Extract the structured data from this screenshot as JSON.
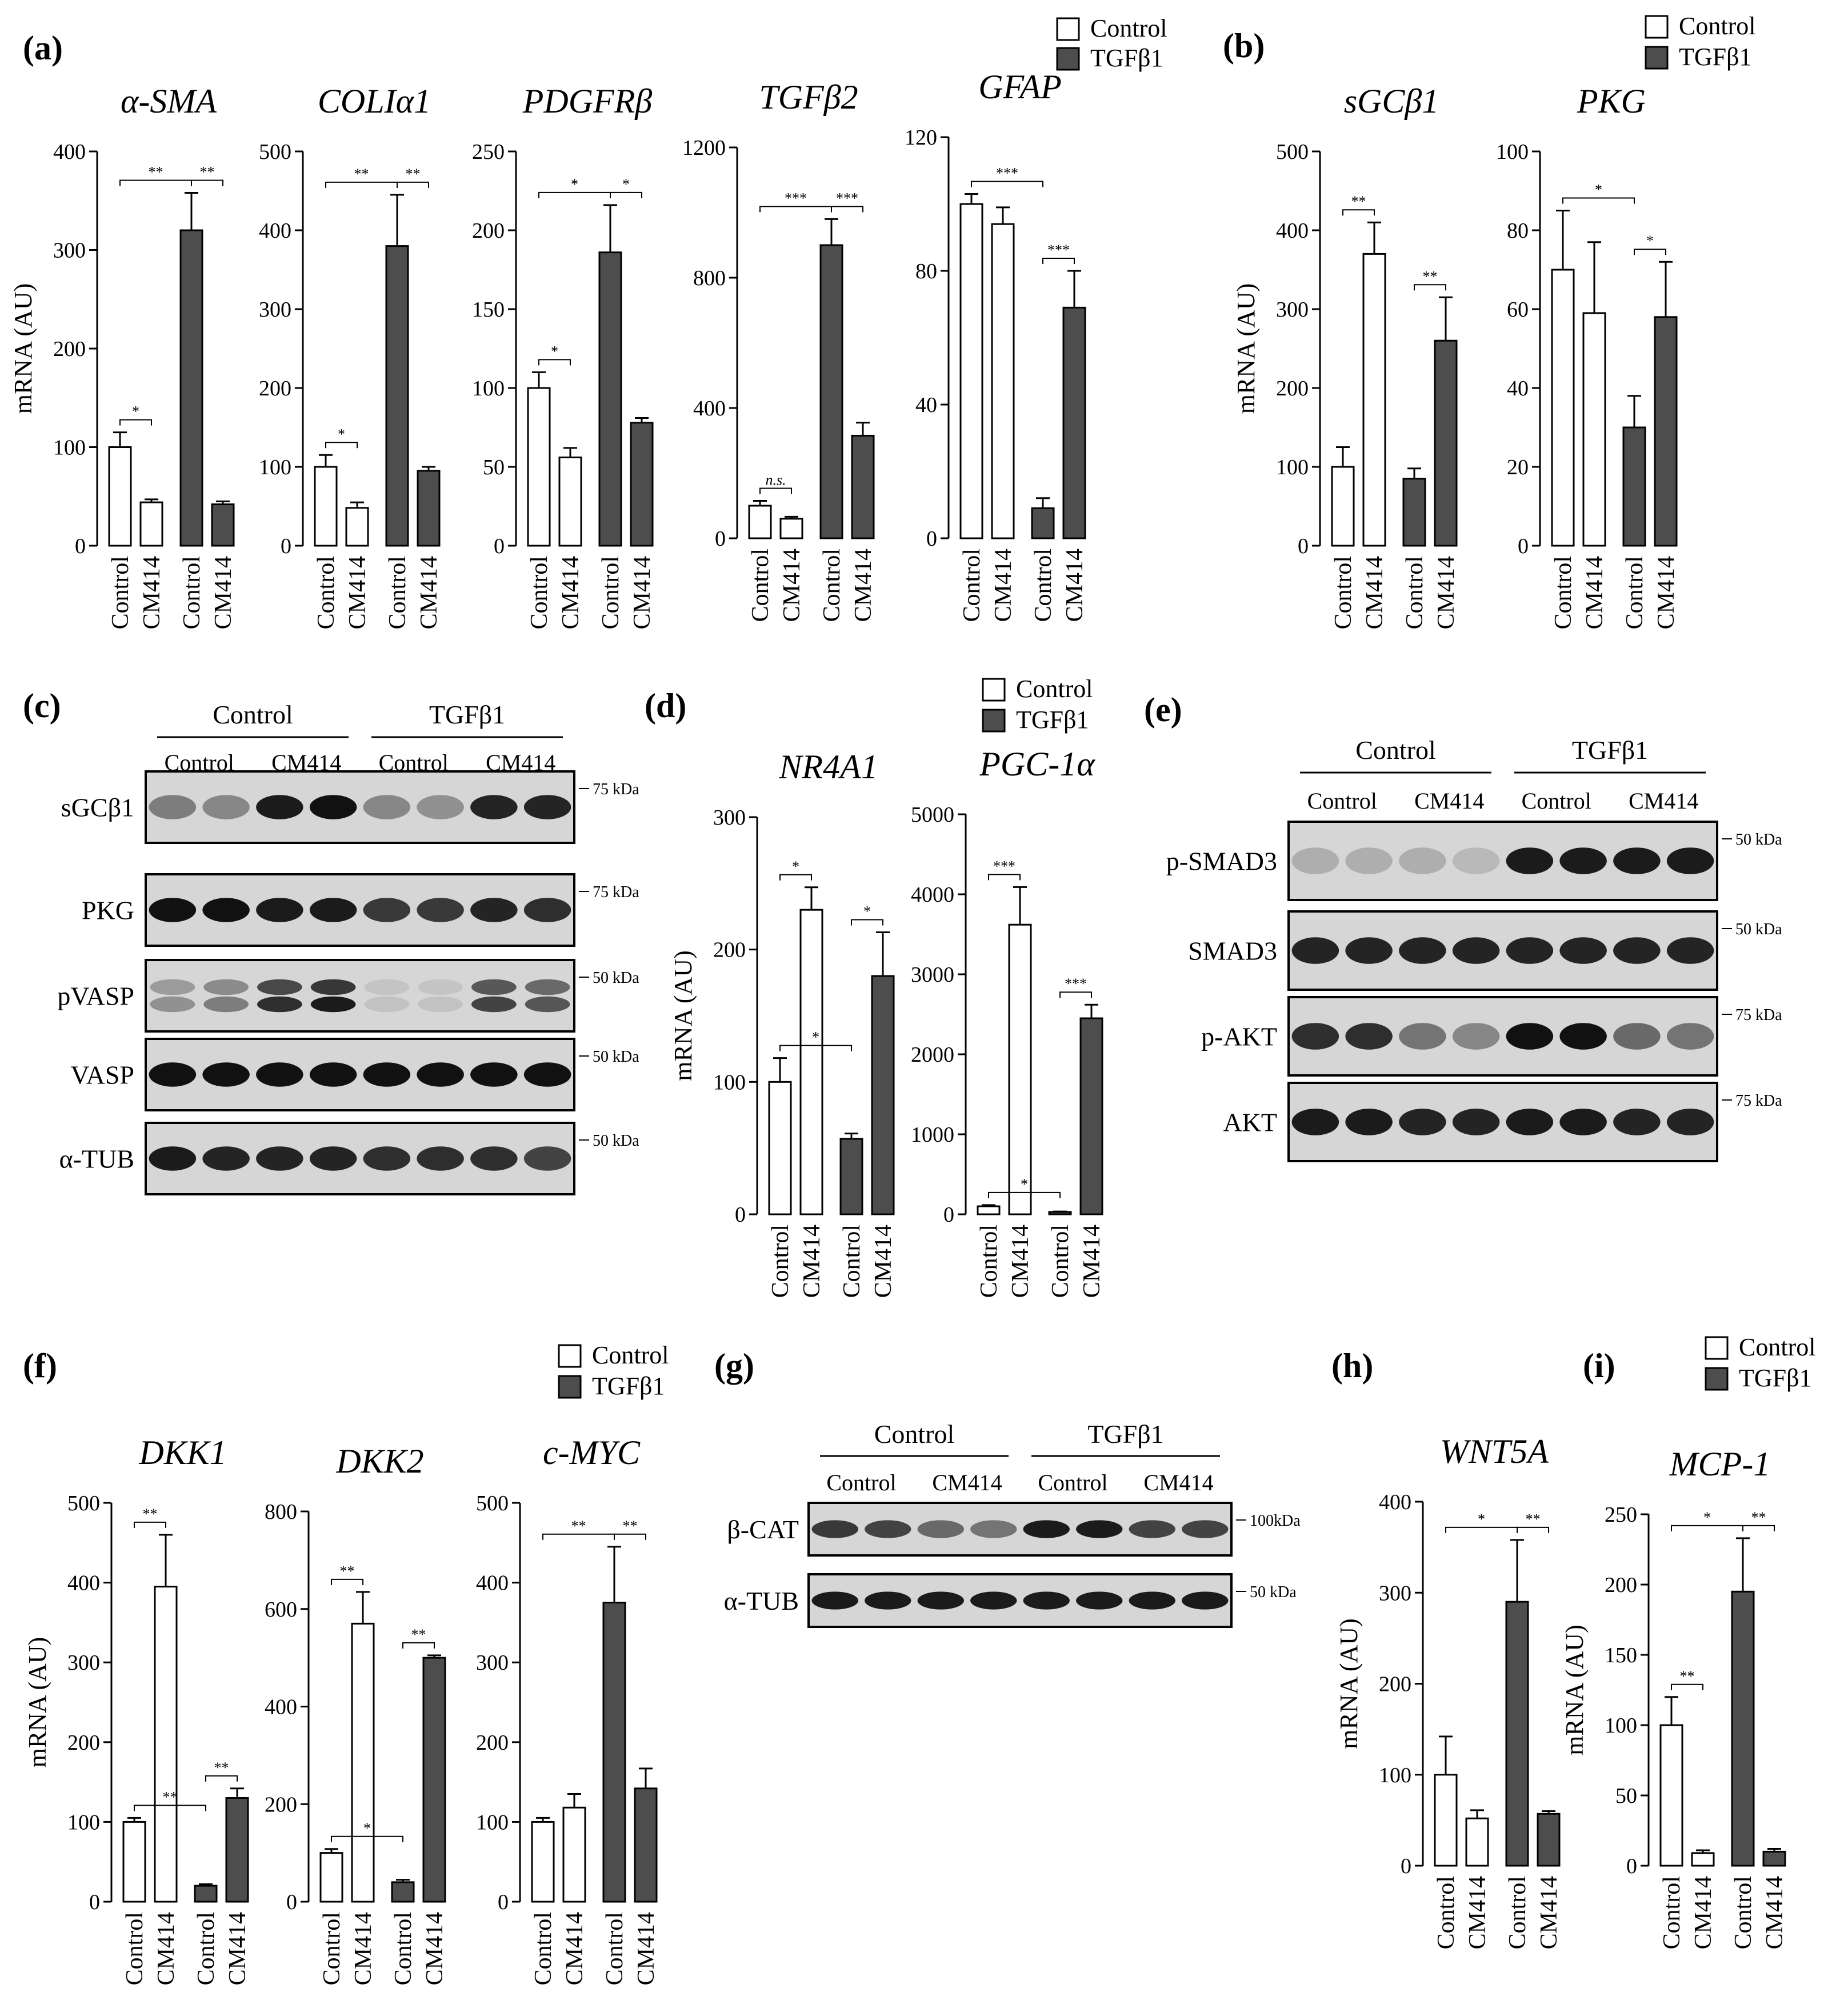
{
  "legend": {
    "control": "Control",
    "tgf": "TGFβ1"
  },
  "chart_data": [
    {
      "panel": "(a)",
      "type": "bar",
      "title": "α-SMA",
      "ylabel": "mRNA (AU)",
      "ylim": [
        0,
        400
      ],
      "yticks": [
        0,
        100,
        200,
        300,
        400
      ],
      "categories": [
        "Control",
        "CM414",
        "Control",
        "CM414"
      ],
      "values": [
        100,
        44,
        320,
        42
      ],
      "errors": [
        15,
        3,
        38,
        3
      ],
      "groups": [
        "Control",
        "Control",
        "TGFβ1",
        "TGFβ1"
      ],
      "annotations": [
        {
          "from": 0,
          "to": 1,
          "label": "*"
        },
        {
          "from": 0,
          "to": 2,
          "label": "**"
        },
        {
          "from": 2,
          "to": 3,
          "label": "**"
        }
      ]
    },
    {
      "panel": "(a)",
      "type": "bar",
      "title": "COLIα1",
      "ylabel": "",
      "ylim": [
        0,
        500
      ],
      "yticks": [
        0,
        100,
        200,
        300,
        400,
        500
      ],
      "categories": [
        "Control",
        "CM414",
        "Control",
        "CM414"
      ],
      "values": [
        100,
        48,
        380,
        95
      ],
      "errors": [
        15,
        7,
        65,
        5
      ],
      "groups": [
        "Control",
        "Control",
        "TGFβ1",
        "TGFβ1"
      ],
      "annotations": [
        {
          "from": 0,
          "to": 1,
          "label": "*"
        },
        {
          "from": 0,
          "to": 2,
          "label": "**"
        },
        {
          "from": 2,
          "to": 3,
          "label": "**"
        }
      ]
    },
    {
      "panel": "(a)",
      "type": "bar",
      "title": "PDGFRβ",
      "ylabel": "",
      "ylim": [
        0,
        250
      ],
      "yticks": [
        0,
        50,
        100,
        150,
        200,
        250
      ],
      "categories": [
        "Control",
        "CM414",
        "Control",
        "CM414"
      ],
      "values": [
        100,
        56,
        186,
        78
      ],
      "errors": [
        10,
        6,
        30,
        3
      ],
      "groups": [
        "Control",
        "Control",
        "TGFβ1",
        "TGFβ1"
      ],
      "annotations": [
        {
          "from": 0,
          "to": 1,
          "label": "*"
        },
        {
          "from": 0,
          "to": 2,
          "label": "*"
        },
        {
          "from": 2,
          "to": 3,
          "label": "*"
        }
      ]
    },
    {
      "panel": "(a)",
      "type": "bar",
      "title": "TGFβ2",
      "ylabel": "",
      "ylim": [
        0,
        1200
      ],
      "yticks": [
        0,
        400,
        800,
        1200
      ],
      "categories": [
        "Control",
        "CM414",
        "Control",
        "CM414"
      ],
      "values": [
        100,
        60,
        900,
        315
      ],
      "errors": [
        15,
        6,
        80,
        40
      ],
      "groups": [
        "Control",
        "Control",
        "TGFβ1",
        "TGFβ1"
      ],
      "annotations": [
        {
          "from": 0,
          "to": 1,
          "label": "n.s."
        },
        {
          "from": 0,
          "to": 2,
          "label": "***"
        },
        {
          "from": 2,
          "to": 3,
          "label": "***"
        }
      ]
    },
    {
      "panel": "(a)",
      "type": "bar",
      "title": "GFAP",
      "ylabel": "",
      "ylim": [
        0,
        120
      ],
      "yticks": [
        0,
        40,
        80,
        120
      ],
      "categories": [
        "Control",
        "CM414",
        "Control",
        "CM414"
      ],
      "values": [
        100,
        94,
        9,
        69
      ],
      "errors": [
        3,
        5,
        3,
        11
      ],
      "groups": [
        "Control",
        "Control",
        "TGFβ1",
        "TGFβ1"
      ],
      "annotations": [
        {
          "from": 0,
          "to": 2,
          "label": "***"
        },
        {
          "from": 2,
          "to": 3,
          "label": "***"
        }
      ]
    },
    {
      "panel": "(b)",
      "type": "bar",
      "title": "sGCβ1",
      "ylabel": "mRNA (AU)",
      "ylim": [
        0,
        500
      ],
      "yticks": [
        0,
        100,
        200,
        300,
        400,
        500
      ],
      "categories": [
        "Control",
        "CM414",
        "Control",
        "CM414"
      ],
      "values": [
        100,
        370,
        85,
        260
      ],
      "errors": [
        25,
        40,
        13,
        55
      ],
      "groups": [
        "Control",
        "Control",
        "TGFβ1",
        "TGFβ1"
      ],
      "annotations": [
        {
          "from": 0,
          "to": 1,
          "label": "**"
        },
        {
          "from": 2,
          "to": 3,
          "label": "**"
        }
      ]
    },
    {
      "panel": "(b)",
      "type": "bar",
      "title": "PKG",
      "ylabel": "",
      "ylim": [
        0,
        100
      ],
      "yticks": [
        0,
        20,
        40,
        60,
        80,
        100
      ],
      "categories": [
        "Control",
        "CM414",
        "Control",
        "CM414"
      ],
      "values": [
        70,
        59,
        30,
        58
      ],
      "errors": [
        15,
        18,
        8,
        14
      ],
      "groups": [
        "Control",
        "Control",
        "TGFβ1",
        "TGFβ1"
      ],
      "annotations": [
        {
          "from": 0,
          "to": 2,
          "label": "*"
        },
        {
          "from": 2,
          "to": 3,
          "label": "*"
        }
      ]
    },
    {
      "panel": "(d)",
      "type": "bar",
      "title": "NR4A1",
      "ylabel": "mRNA (AU)",
      "ylim": [
        0,
        300
      ],
      "yticks": [
        0,
        100,
        200,
        300
      ],
      "categories": [
        "Control",
        "CM414",
        "Control",
        "CM414"
      ],
      "values": [
        100,
        230,
        57,
        180
      ],
      "errors": [
        18,
        17,
        4,
        33
      ],
      "groups": [
        "Control",
        "Control",
        "TGFβ1",
        "TGFβ1"
      ],
      "annotations": [
        {
          "from": 0,
          "to": 1,
          "label": "*"
        },
        {
          "from": 0,
          "to": 2,
          "label": "*"
        },
        {
          "from": 2,
          "to": 3,
          "label": "*"
        }
      ]
    },
    {
      "panel": "(d)",
      "type": "bar",
      "title": "PGC-1α",
      "ylabel": "",
      "ylim": [
        0,
        5000
      ],
      "yticks": [
        0,
        1000,
        2000,
        3000,
        4000,
        5000
      ],
      "categories": [
        "Control",
        "CM414",
        "Control",
        "CM414"
      ],
      "values": [
        100,
        3620,
        30,
        2450
      ],
      "errors": [
        15,
        470,
        5,
        170
      ],
      "groups": [
        "Control",
        "Control",
        "TGFβ1",
        "TGFβ1"
      ],
      "annotations": [
        {
          "from": 0,
          "to": 1,
          "label": "***"
        },
        {
          "from": 0,
          "to": 2,
          "label": "*"
        },
        {
          "from": 2,
          "to": 3,
          "label": "***"
        }
      ]
    },
    {
      "panel": "(f)",
      "type": "bar",
      "title": "DKK1",
      "ylabel": "mRNA (AU)",
      "ylim": [
        0,
        500
      ],
      "yticks": [
        0,
        100,
        200,
        300,
        400,
        500
      ],
      "categories": [
        "Control",
        "CM414",
        "Control",
        "CM414"
      ],
      "values": [
        100,
        395,
        20,
        130
      ],
      "errors": [
        5,
        65,
        2,
        12
      ],
      "groups": [
        "Control",
        "Control",
        "TGFβ1",
        "TGFβ1"
      ],
      "annotations": [
        {
          "from": 0,
          "to": 1,
          "label": "**"
        },
        {
          "from": 0,
          "to": 2,
          "label": "**"
        },
        {
          "from": 2,
          "to": 3,
          "label": "**"
        }
      ]
    },
    {
      "panel": "(f)",
      "type": "bar",
      "title": "DKK2",
      "ylabel": "",
      "ylim": [
        0,
        800
      ],
      "yticks": [
        0,
        200,
        400,
        600,
        800
      ],
      "categories": [
        "Control",
        "CM414",
        "Control",
        "CM414"
      ],
      "values": [
        100,
        570,
        40,
        500
      ],
      "errors": [
        8,
        65,
        5,
        5
      ],
      "groups": [
        "Control",
        "Control",
        "TGFβ1",
        "TGFβ1"
      ],
      "annotations": [
        {
          "from": 0,
          "to": 1,
          "label": "**"
        },
        {
          "from": 0,
          "to": 2,
          "label": "*"
        },
        {
          "from": 2,
          "to": 3,
          "label": "**"
        }
      ]
    },
    {
      "panel": "(f)",
      "type": "bar",
      "title": "c-MYC",
      "ylabel": "",
      "ylim": [
        0,
        500
      ],
      "yticks": [
        0,
        100,
        200,
        300,
        400,
        500
      ],
      "categories": [
        "Control",
        "CM414",
        "Control",
        "CM414"
      ],
      "values": [
        100,
        118,
        375,
        142
      ],
      "errors": [
        5,
        17,
        70,
        25
      ],
      "groups": [
        "Control",
        "Control",
        "TGFβ1",
        "TGFβ1"
      ],
      "annotations": [
        {
          "from": 0,
          "to": 2,
          "label": "**"
        },
        {
          "from": 2,
          "to": 3,
          "label": "**"
        }
      ]
    },
    {
      "panel": "(h)",
      "type": "bar",
      "title": "WNT5A",
      "ylabel": "mRNA (AU)",
      "ylim": [
        0,
        400
      ],
      "yticks": [
        0,
        100,
        200,
        300,
        400
      ],
      "categories": [
        "Control",
        "CM414",
        "Control",
        "CM414"
      ],
      "values": [
        100,
        52,
        290,
        57
      ],
      "errors": [
        42,
        9,
        68,
        3
      ],
      "groups": [
        "Control",
        "Control",
        "TGFβ1",
        "TGFβ1"
      ],
      "annotations": [
        {
          "from": 0,
          "to": 2,
          "label": "*"
        },
        {
          "from": 2,
          "to": 3,
          "label": "**"
        }
      ]
    },
    {
      "panel": "(i)",
      "type": "bar",
      "title": "MCP-1",
      "ylabel": "mRNA (AU)",
      "ylim": [
        0,
        250
      ],
      "yticks": [
        0,
        50,
        100,
        150,
        200,
        250
      ],
      "categories": [
        "Control",
        "CM414",
        "Control",
        "CM414"
      ],
      "values": [
        100,
        9,
        195,
        10
      ],
      "errors": [
        20,
        2,
        38,
        2
      ],
      "groups": [
        "Control",
        "Control",
        "TGFβ1",
        "TGFβ1"
      ],
      "annotations": [
        {
          "from": 0,
          "to": 1,
          "label": "**"
        },
        {
          "from": 0,
          "to": 2,
          "label": "*"
        },
        {
          "from": 2,
          "to": 3,
          "label": "**"
        }
      ]
    }
  ],
  "blots": [
    {
      "panel": "(c)",
      "group_labels": [
        "Control",
        "TGFβ1"
      ],
      "lane_labels": [
        "Control",
        "CM414",
        "Control",
        "CM414"
      ],
      "rows": [
        {
          "label": "sGCβ1",
          "marker": "75 kDa",
          "bands": [
            0.45,
            0.4,
            0.95,
            1.0,
            0.4,
            0.35,
            0.9,
            0.9
          ],
          "double": false
        },
        {
          "label": "PKG",
          "marker": "75 kDa",
          "bands": [
            1.0,
            1.0,
            0.95,
            0.95,
            0.8,
            0.8,
            0.9,
            0.85
          ],
          "double": false
        },
        {
          "label": "pVASP",
          "marker": "50 kDa",
          "bands": [
            0.35,
            0.45,
            0.85,
            0.95,
            0.1,
            0.1,
            0.75,
            0.65
          ],
          "double": true
        },
        {
          "label": "VASP",
          "marker": "50 kDa",
          "bands": [
            1.0,
            1.0,
            1.0,
            1.0,
            1.0,
            1.0,
            1.0,
            1.0
          ],
          "double": false
        },
        {
          "label": "α-TUB",
          "marker": "50 kDa",
          "bands": [
            0.95,
            0.9,
            0.9,
            0.9,
            0.85,
            0.85,
            0.85,
            0.75
          ],
          "double": false
        }
      ]
    },
    {
      "panel": "(e)",
      "group_labels": [
        "Control",
        "TGFβ1"
      ],
      "lane_labels": [
        "Control",
        "CM414",
        "Control",
        "CM414"
      ],
      "rows": [
        {
          "label": "p-SMAD3",
          "marker": "50 kDa",
          "bands": [
            0.2,
            0.2,
            0.2,
            0.15,
            0.95,
            0.95,
            0.95,
            0.95
          ],
          "double": false
        },
        {
          "label": "SMAD3",
          "marker": "50 kDa",
          "bands": [
            0.9,
            0.9,
            0.9,
            0.9,
            0.9,
            0.9,
            0.9,
            0.9
          ],
          "double": false
        },
        {
          "label": "p-AKT",
          "marker": "75 kDa",
          "bands": [
            0.85,
            0.85,
            0.5,
            0.4,
            1.0,
            1.0,
            0.55,
            0.5
          ],
          "double": false
        },
        {
          "label": "AKT",
          "marker": "75 kDa",
          "bands": [
            0.95,
            0.95,
            0.9,
            0.9,
            0.95,
            0.95,
            0.9,
            0.9
          ],
          "double": false
        }
      ]
    },
    {
      "panel": "(g)",
      "group_labels": [
        "Control",
        "TGFβ1"
      ],
      "lane_labels": [
        "Control",
        "CM414",
        "Control",
        "CM414"
      ],
      "rows": [
        {
          "label": "β-CAT",
          "marker": "100kDa",
          "bands": [
            0.8,
            0.75,
            0.55,
            0.5,
            0.95,
            0.95,
            0.75,
            0.75
          ],
          "double": false
        },
        {
          "label": "α-TUB",
          "marker": "50 kDa",
          "bands": [
            0.95,
            0.95,
            0.95,
            0.95,
            0.95,
            0.95,
            0.95,
            0.95
          ],
          "double": false
        }
      ]
    }
  ],
  "colors": {
    "control_fill": "#ffffff",
    "tgf_fill": "#4d4d4d",
    "axis": "#000000",
    "blot_bg": "#d6d6d6",
    "band": "#111111"
  }
}
